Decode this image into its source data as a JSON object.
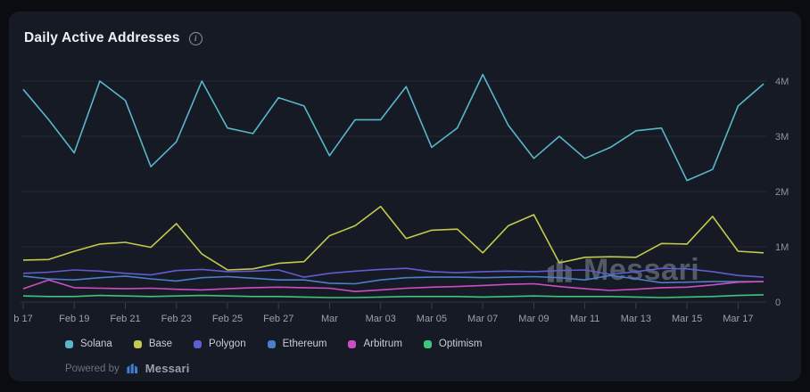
{
  "header": {
    "title": "Daily Active Addresses"
  },
  "chart_data": {
    "type": "line",
    "title": "Daily Active Addresses",
    "unit": "millions of addresses",
    "categories": [
      "Feb 17",
      "Feb 18",
      "Feb 19",
      "Feb 20",
      "Feb 21",
      "Feb 22",
      "Feb 23",
      "Feb 24",
      "Feb 25",
      "Feb 26",
      "Feb 27",
      "Feb 28",
      "Mar 01",
      "Mar 02",
      "Mar 03",
      "Mar 04",
      "Mar 05",
      "Mar 06",
      "Mar 07",
      "Mar 08",
      "Mar 09",
      "Mar 10",
      "Mar 11",
      "Mar 12",
      "Mar 13",
      "Mar 14",
      "Mar 15",
      "Mar 16",
      "Mar 17",
      "Mar 18"
    ],
    "x_tick_labels": [
      "b 17",
      "Feb 19",
      "Feb 21",
      "Feb 23",
      "Feb 25",
      "Feb 27",
      "Mar",
      "Mar 03",
      "Mar 05",
      "Mar 07",
      "Mar 09",
      "Mar 11",
      "Mar 13",
      "Mar 15",
      "Mar 17"
    ],
    "y_tick_labels": [
      "4M",
      "3M",
      "2M",
      "1M",
      "0"
    ],
    "y_ticks_millions": [
      4,
      3,
      2,
      1,
      0
    ],
    "ylim_millions": [
      0,
      4.3
    ],
    "grid": "horizontal",
    "legend_position": "bottom",
    "series": [
      {
        "name": "Solana",
        "color": "#58b7c9",
        "values_millions": [
          3.85,
          3.3,
          2.7,
          4.0,
          3.65,
          2.45,
          2.9,
          4.0,
          3.15,
          3.05,
          3.7,
          3.55,
          2.65,
          3.3,
          3.3,
          3.9,
          2.8,
          3.15,
          4.12,
          3.2,
          2.6,
          3.0,
          2.6,
          2.8,
          3.1,
          3.15,
          2.2,
          2.4,
          3.55,
          3.95
        ]
      },
      {
        "name": "Base",
        "color": "#c3ca4d",
        "values_millions": [
          0.76,
          0.77,
          0.92,
          1.05,
          1.08,
          0.99,
          1.42,
          0.87,
          0.58,
          0.6,
          0.7,
          0.73,
          1.2,
          1.38,
          1.73,
          1.15,
          1.3,
          1.32,
          0.89,
          1.38,
          1.58,
          0.71,
          0.81,
          0.82,
          0.81,
          1.06,
          1.05,
          1.55,
          0.92,
          0.89
        ]
      },
      {
        "name": "Polygon",
        "color": "#5f5dd1",
        "values_millions": [
          0.52,
          0.54,
          0.58,
          0.56,
          0.52,
          0.49,
          0.57,
          0.59,
          0.55,
          0.56,
          0.58,
          0.45,
          0.52,
          0.56,
          0.59,
          0.61,
          0.55,
          0.53,
          0.55,
          0.56,
          0.55,
          0.57,
          0.58,
          0.5,
          0.55,
          0.61,
          0.6,
          0.55,
          0.48,
          0.45
        ]
      },
      {
        "name": "Ethereum",
        "color": "#4a7fc9",
        "values_millions": [
          0.47,
          0.42,
          0.4,
          0.44,
          0.47,
          0.42,
          0.38,
          0.44,
          0.46,
          0.43,
          0.4,
          0.4,
          0.34,
          0.33,
          0.4,
          0.44,
          0.45,
          0.45,
          0.44,
          0.45,
          0.46,
          0.44,
          0.4,
          0.48,
          0.42,
          0.35,
          0.36,
          0.37,
          0.37,
          0.37
        ]
      },
      {
        "name": "Arbitrum",
        "color": "#cb4ec2",
        "values_millions": [
          0.24,
          0.4,
          0.26,
          0.25,
          0.24,
          0.25,
          0.23,
          0.22,
          0.24,
          0.26,
          0.27,
          0.26,
          0.25,
          0.19,
          0.22,
          0.25,
          0.27,
          0.28,
          0.3,
          0.32,
          0.33,
          0.28,
          0.24,
          0.21,
          0.23,
          0.26,
          0.27,
          0.31,
          0.36,
          0.37
        ]
      },
      {
        "name": "Optimism",
        "color": "#3ec47c",
        "values_millions": [
          0.11,
          0.1,
          0.1,
          0.12,
          0.11,
          0.1,
          0.11,
          0.12,
          0.11,
          0.1,
          0.1,
          0.09,
          0.08,
          0.08,
          0.09,
          0.1,
          0.1,
          0.1,
          0.09,
          0.1,
          0.11,
          0.1,
          0.1,
          0.1,
          0.09,
          0.08,
          0.09,
          0.1,
          0.12,
          0.13
        ]
      }
    ]
  },
  "watermark": {
    "text": "Messari"
  },
  "footer": {
    "powered_by": "Powered by",
    "brand": "Messari"
  },
  "colors": {
    "page_background": "#0a0c11",
    "card_background": "#151a24",
    "grid_line": "rgba(255,255,255,0.07)",
    "axis_text": "#8d93a0",
    "brand_blue": "#3f7bd0"
  }
}
